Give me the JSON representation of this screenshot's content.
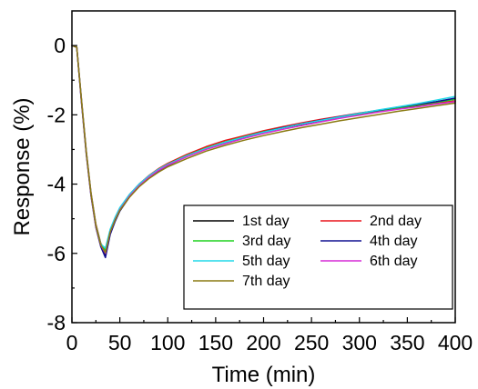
{
  "chart_data": {
    "type": "line",
    "title": "",
    "xlabel": "Time (min)",
    "ylabel": "Response (%)",
    "xlim": [
      0,
      400
    ],
    "ylim": [
      -8,
      1
    ],
    "xticks": [
      0,
      50,
      100,
      150,
      200,
      250,
      300,
      350,
      400
    ],
    "yticks": [
      0,
      -2,
      -4,
      -6,
      -8
    ],
    "xtick_labels": [
      "0",
      "50",
      "100",
      "150",
      "200",
      "250",
      "300",
      "350",
      "400"
    ],
    "ytick_labels": [
      "0",
      "-2",
      "-4",
      "-6",
      "-8"
    ],
    "grid": false,
    "legend_position": "bottom-right",
    "x": [
      0,
      5,
      10,
      15,
      20,
      25,
      30,
      35,
      40,
      45,
      50,
      60,
      70,
      80,
      90,
      100,
      120,
      140,
      160,
      180,
      200,
      220,
      240,
      260,
      280,
      300,
      320,
      340,
      360,
      380,
      400
    ],
    "series": [
      {
        "name": "1st day",
        "color": "#000000",
        "values": [
          0.0,
          -0.05,
          -1.6,
          -3.1,
          -4.3,
          -5.2,
          -5.75,
          -6.05,
          -5.4,
          -5.05,
          -4.75,
          -4.35,
          -4.05,
          -3.8,
          -3.6,
          -3.45,
          -3.2,
          -2.98,
          -2.8,
          -2.65,
          -2.5,
          -2.38,
          -2.27,
          -2.17,
          -2.07,
          -1.98,
          -1.9,
          -1.82,
          -1.75,
          -1.68,
          -1.6
        ]
      },
      {
        "name": "2nd day",
        "color": "#e8141b",
        "values": [
          0.0,
          -0.05,
          -1.55,
          -3.05,
          -4.25,
          -5.15,
          -5.7,
          -5.95,
          -5.35,
          -5.0,
          -4.7,
          -4.3,
          -4.0,
          -3.76,
          -3.56,
          -3.4,
          -3.14,
          -2.92,
          -2.74,
          -2.6,
          -2.46,
          -2.34,
          -2.23,
          -2.13,
          -2.04,
          -1.95,
          -1.87,
          -1.8,
          -1.73,
          -1.66,
          -1.6
        ]
      },
      {
        "name": "3rd day",
        "color": "#1fd21f",
        "values": [
          0.0,
          -0.05,
          -1.58,
          -3.08,
          -4.28,
          -5.18,
          -5.72,
          -5.9,
          -5.32,
          -4.98,
          -4.7,
          -4.32,
          -4.02,
          -3.78,
          -3.58,
          -3.42,
          -3.17,
          -2.96,
          -2.78,
          -2.63,
          -2.49,
          -2.37,
          -2.26,
          -2.16,
          -2.07,
          -1.98,
          -1.89,
          -1.8,
          -1.72,
          -1.64,
          -1.55
        ]
      },
      {
        "name": "4th day",
        "color": "#101090",
        "values": [
          0.0,
          -0.05,
          -1.65,
          -3.15,
          -4.35,
          -5.25,
          -5.8,
          -6.12,
          -5.45,
          -5.08,
          -4.78,
          -4.37,
          -4.06,
          -3.82,
          -3.62,
          -3.46,
          -3.2,
          -2.98,
          -2.8,
          -2.64,
          -2.5,
          -2.37,
          -2.26,
          -2.15,
          -2.05,
          -1.96,
          -1.87,
          -1.78,
          -1.7,
          -1.62,
          -1.52
        ]
      },
      {
        "name": "5th day",
        "color": "#21d8e8",
        "values": [
          0.0,
          -0.05,
          -1.6,
          -3.1,
          -4.3,
          -5.2,
          -5.73,
          -5.85,
          -5.3,
          -4.96,
          -4.68,
          -4.3,
          -4.0,
          -3.77,
          -3.58,
          -3.43,
          -3.18,
          -2.97,
          -2.79,
          -2.64,
          -2.5,
          -2.38,
          -2.26,
          -2.16,
          -2.06,
          -1.96,
          -1.86,
          -1.77,
          -1.68,
          -1.58,
          -1.47
        ]
      },
      {
        "name": "6th day",
        "color": "#d62ad6",
        "values": [
          0.0,
          -0.05,
          -1.62,
          -3.12,
          -4.32,
          -5.22,
          -5.76,
          -6.0,
          -5.38,
          -5.03,
          -4.74,
          -4.35,
          -4.05,
          -3.81,
          -3.61,
          -3.45,
          -3.21,
          -3.0,
          -2.83,
          -2.68,
          -2.54,
          -2.42,
          -2.31,
          -2.2,
          -2.1,
          -2.01,
          -1.92,
          -1.84,
          -1.77,
          -1.69,
          -1.62
        ]
      },
      {
        "name": "7th day",
        "color": "#8a7a12",
        "values": [
          0.0,
          -0.05,
          -1.6,
          -3.1,
          -4.3,
          -5.2,
          -5.75,
          -5.98,
          -5.38,
          -5.04,
          -4.76,
          -4.38,
          -4.08,
          -3.85,
          -3.66,
          -3.5,
          -3.26,
          -3.05,
          -2.88,
          -2.73,
          -2.6,
          -2.48,
          -2.37,
          -2.27,
          -2.17,
          -2.08,
          -1.99,
          -1.9,
          -1.82,
          -1.74,
          -1.66
        ]
      }
    ]
  }
}
